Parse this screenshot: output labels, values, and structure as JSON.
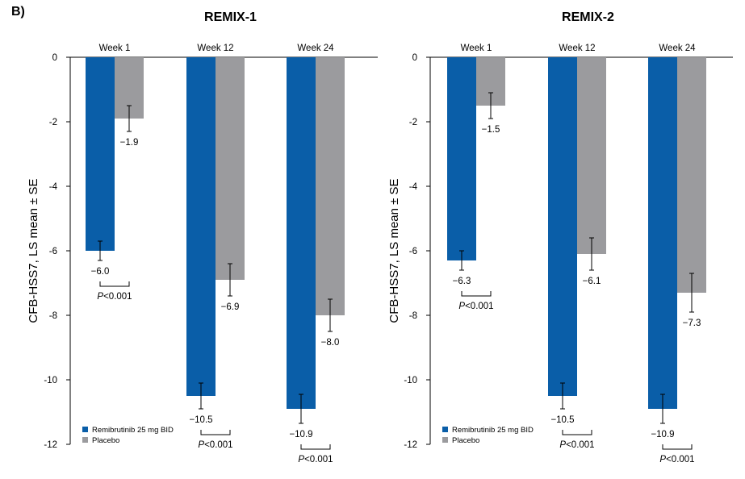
{
  "panel_label": "B)",
  "chart_data": [
    {
      "type": "bar",
      "title": "REMIX-1",
      "ylabel": "CFB-HSS7, LS mean ± SE",
      "ylim": [
        -12,
        0
      ],
      "yticks": [
        "0",
        "-2",
        "-4",
        "-6",
        "-8",
        "-10",
        "-12"
      ],
      "categories": [
        "Week 1",
        "Week 12",
        "Week 24"
      ],
      "series": [
        {
          "name": "Remibrutinib 25 mg BID",
          "color": "#0a5ea8",
          "values": [
            -6.0,
            -10.5,
            -10.9
          ],
          "se": [
            0.3,
            0.4,
            0.45
          ],
          "labels": [
            "−6.0",
            "−10.5",
            "−10.9"
          ]
        },
        {
          "name": "Placebo",
          "color": "#9b9b9e",
          "values": [
            -1.9,
            -6.9,
            -8.0
          ],
          "se": [
            0.4,
            0.5,
            0.5
          ],
          "labels": [
            "−1.9",
            "−6.9",
            "−8.0"
          ]
        }
      ],
      "pvalues": [
        {
          "prefix": "P",
          "text": "<0.001"
        },
        {
          "prefix": "P",
          "text": "<0.001"
        },
        {
          "prefix": "P",
          "text": "<0.001"
        }
      ],
      "legend": [
        "Remibrutinib 25 mg BID",
        "Placebo"
      ],
      "legend_position": "bottom-left"
    },
    {
      "type": "bar",
      "title": "REMIX-2",
      "ylabel": "CFB-HSS7, LS mean ± SE",
      "ylim": [
        -12,
        0
      ],
      "yticks": [
        "0",
        "-2",
        "-4",
        "-6",
        "-8",
        "-10",
        "-12"
      ],
      "categories": [
        "Week 1",
        "Week 12",
        "Week 24"
      ],
      "series": [
        {
          "name": "Remibrutinib 25 mg BID",
          "color": "#0a5ea8",
          "values": [
            -6.3,
            -10.5,
            -10.9
          ],
          "se": [
            0.3,
            0.4,
            0.45
          ],
          "labels": [
            "−6.3",
            "−10.5",
            "−10.9"
          ]
        },
        {
          "name": "Placebo",
          "color": "#9b9b9e",
          "values": [
            -1.5,
            -6.1,
            -7.3
          ],
          "se": [
            0.4,
            0.5,
            0.6
          ],
          "labels": [
            "−1.5",
            "−6.1",
            "−7.3"
          ]
        }
      ],
      "pvalues": [
        {
          "prefix": "P",
          "text": "<0.001"
        },
        {
          "prefix": "P",
          "text": "<0.001"
        },
        {
          "prefix": "P",
          "text": "<0.001"
        }
      ],
      "legend": [
        "Remibrutinib 25 mg BID",
        "Placebo"
      ],
      "legend_position": "bottom-left"
    }
  ]
}
